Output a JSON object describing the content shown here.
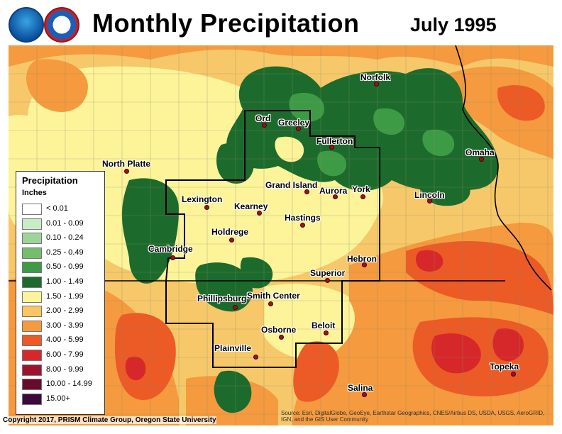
{
  "header": {
    "title": "Monthly Precipitation",
    "date": "July 1995",
    "logos": [
      "noaa-logo",
      "nws-logo"
    ]
  },
  "legend": {
    "title": "Precipitation",
    "unit": "Inches",
    "items": [
      {
        "label": "< 0.01",
        "color": "#ffffff"
      },
      {
        "label": "0.01 - 0.09",
        "color": "#c8ecc4"
      },
      {
        "label": "0.10 - 0.24",
        "color": "#9ed49a"
      },
      {
        "label": "0.25 - 0.49",
        "color": "#74bd6e"
      },
      {
        "label": "0.50 - 0.99",
        "color": "#3e9b45"
      },
      {
        "label": "1.00 - 1.49",
        "color": "#1c6b2c"
      },
      {
        "label": "1.50 - 1.99",
        "color": "#fdf49a"
      },
      {
        "label": "2.00 - 2.99",
        "color": "#f9c662"
      },
      {
        "label": "3.00 - 3.99",
        "color": "#f59a3e"
      },
      {
        "label": "4.00 - 5.99",
        "color": "#ec5a26"
      },
      {
        "label": "6.00 - 7.99",
        "color": "#d6282a"
      },
      {
        "label": "8.00 - 9.99",
        "color": "#a0122c"
      },
      {
        "label": "10.00 - 14.99",
        "color": "#6a0a2a"
      },
      {
        "label": "15.00+",
        "color": "#3b0a3e"
      }
    ]
  },
  "cities": [
    {
      "name": "Norfolk"
    },
    {
      "name": "Ord"
    },
    {
      "name": "Greeley"
    },
    {
      "name": "Fullerton"
    },
    {
      "name": "North Platte"
    },
    {
      "name": "Omaha"
    },
    {
      "name": "Grand Island"
    },
    {
      "name": "Aurora"
    },
    {
      "name": "York"
    },
    {
      "name": "Lincoln"
    },
    {
      "name": "Lexington"
    },
    {
      "name": "Kearney"
    },
    {
      "name": "Hastings"
    },
    {
      "name": "Holdrege"
    },
    {
      "name": "Cambridge"
    },
    {
      "name": "Hebron"
    },
    {
      "name": "Superior"
    },
    {
      "name": "Phillipsburg"
    },
    {
      "name": "Smith Center"
    },
    {
      "name": "Osborne"
    },
    {
      "name": "Beloit"
    },
    {
      "name": "Plainville"
    },
    {
      "name": "Topeka"
    },
    {
      "name": "Salina"
    }
  ],
  "footer": {
    "copyright": "Copyright 2017, PRISM Climate Group, Oregon State University",
    "source": "Source: Esri, DigitalGlobe, GeoEye, Earthstar Geographics, CNES/Airbus DS, USDA, USGS, AeroGRID, IGN, and the GIS User Community"
  }
}
